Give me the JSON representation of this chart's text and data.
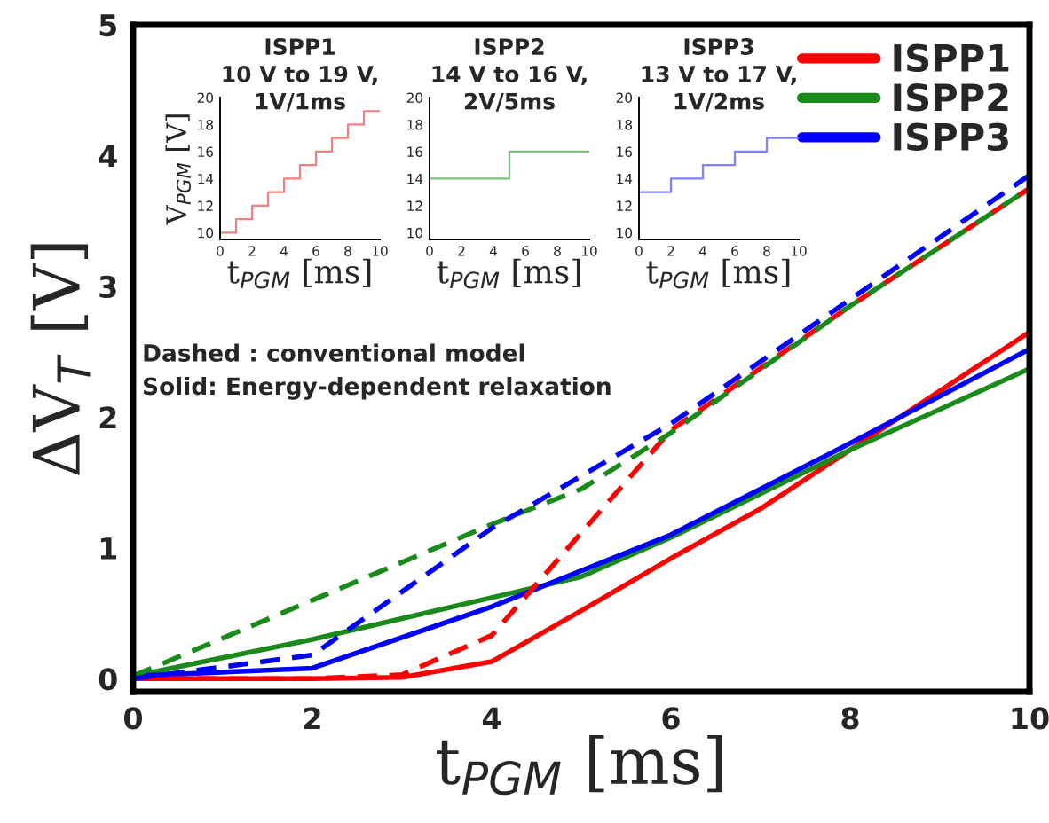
{
  "chart_data": [
    {
      "type": "line",
      "xlabel": "t$_{PGM}$ [ms]",
      "ylabel": "ΔV$_{T}$ [V]",
      "xlim": [
        0,
        10
      ],
      "ylim": [
        -0.1,
        5
      ],
      "xticks": [
        0,
        2,
        4,
        6,
        8,
        10
      ],
      "yticks": [
        0,
        1,
        2,
        3,
        4,
        5
      ],
      "legend": "top right",
      "grid": false,
      "annotations": [
        "Dashed : conventional model",
        "Solid: Energy-dependent relaxation"
      ],
      "series": [
        {
          "name": "ISPP1",
          "color": "#ff0000",
          "line_style": "solid",
          "x": [
            0,
            2,
            3,
            4,
            5,
            6,
            7,
            8,
            9,
            10
          ],
          "values": [
            0,
            0,
            0.01,
            0.13,
            0.52,
            0.92,
            1.3,
            1.75,
            2.2,
            2.65
          ]
        },
        {
          "name": "ISPP2",
          "color": "#1a8a1a",
          "line_style": "solid",
          "x": [
            0,
            2,
            4,
            5,
            6,
            8,
            10
          ],
          "values": [
            0.02,
            0.3,
            0.62,
            0.78,
            1.08,
            1.75,
            2.37
          ]
        },
        {
          "name": "ISPP3",
          "color": "#0000ff",
          "line_style": "solid",
          "x": [
            0,
            2,
            4,
            6,
            8,
            10
          ],
          "values": [
            0.02,
            0.08,
            0.55,
            1.1,
            1.8,
            2.52
          ]
        },
        {
          "color": "#ff0000",
          "line_style": "dashed",
          "x": [
            0,
            2,
            3,
            4,
            6,
            8,
            10
          ],
          "values": [
            0,
            0,
            0.03,
            0.33,
            1.9,
            2.85,
            3.75
          ]
        },
        {
          "color": "#1a8a1a",
          "line_style": "dashed",
          "x": [
            0,
            4,
            5,
            6,
            8,
            10
          ],
          "values": [
            0.02,
            1.18,
            1.45,
            1.88,
            2.85,
            3.75
          ]
        },
        {
          "color": "#0000ff",
          "line_style": "dashed",
          "x": [
            0,
            2,
            4,
            6,
            8,
            10
          ],
          "values": [
            0,
            0.18,
            1.15,
            1.95,
            2.9,
            3.85
          ]
        }
      ]
    },
    {
      "type": "step",
      "title": "ISPP1\n10 V to 19 V,\n1V/1ms",
      "xlabel": "t$_{PGM}$ [ms]",
      "ylabel": "V$_{PGM}$ [V]",
      "xlim": [
        0,
        10
      ],
      "ylim": [
        9.5,
        20
      ],
      "xticks": [
        0,
        2,
        4,
        6,
        8,
        10
      ],
      "yticks": [
        10,
        12,
        14,
        16,
        18,
        20
      ],
      "series": [
        {
          "color": "#f08080",
          "x": [
            0,
            1,
            2,
            3,
            4,
            5,
            6,
            7,
            8,
            9,
            10
          ],
          "values": [
            10,
            11,
            12,
            13,
            14,
            15,
            16,
            17,
            18,
            19,
            19
          ]
        }
      ]
    },
    {
      "type": "step",
      "title": "ISPP2\n14 V to 16 V,\n2V/5ms",
      "xlabel": "t$_{PGM}$ [ms]",
      "xlim": [
        0,
        10
      ],
      "ylim": [
        9.5,
        20
      ],
      "xticks": [
        0,
        2,
        4,
        6,
        8,
        10
      ],
      "yticks": [
        10,
        12,
        14,
        16,
        18,
        20
      ],
      "series": [
        {
          "color": "#80c080",
          "x": [
            0,
            5,
            10
          ],
          "values": [
            14,
            16,
            16
          ]
        }
      ]
    },
    {
      "type": "step",
      "title": "ISPP3\n13 V to 17 V,\n1V/2ms",
      "xlabel": "t$_{PGM}$ [ms]",
      "xlim": [
        0,
        10
      ],
      "ylim": [
        9.5,
        20
      ],
      "xticks": [
        0,
        2,
        4,
        6,
        8,
        10
      ],
      "yticks": [
        10,
        12,
        14,
        16,
        18,
        20
      ],
      "series": [
        {
          "color": "#8080ff",
          "x": [
            0,
            2,
            4,
            6,
            8,
            10
          ],
          "values": [
            13,
            14,
            15,
            16,
            17,
            17
          ]
        }
      ]
    }
  ]
}
